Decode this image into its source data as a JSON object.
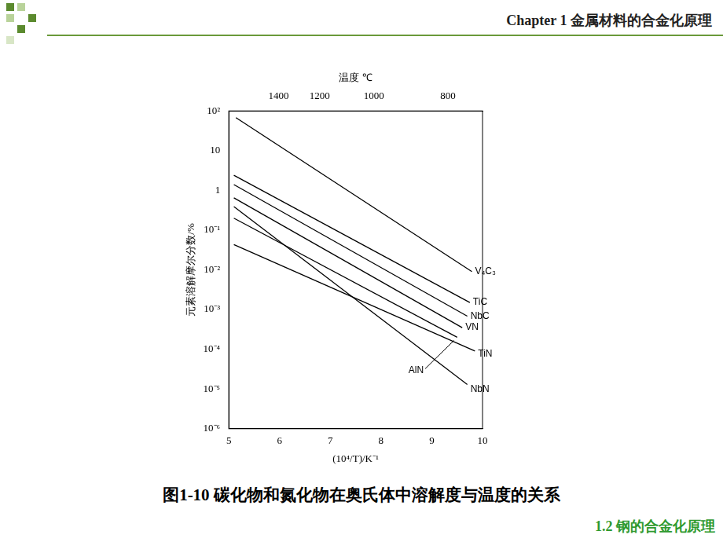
{
  "header": "Chapter 1 金属材料的合金化原理",
  "footer": "1.2 钢的合金化原理",
  "chart_data": {
    "type": "line",
    "title": "图1-10 碳化物和氮化物在奥氏体中溶解度与温度的关系",
    "x_label": "(10⁴/T)/K⁻¹",
    "x2_label": "温度 ℃",
    "y_label": "元素溶解摩尔分数/%",
    "log": "y",
    "grid": false,
    "xlim": [
      5,
      10
    ],
    "xticks": [
      5,
      6,
      7,
      8,
      9,
      10
    ],
    "x2lim": [
      5,
      10
    ],
    "x2ticks": [
      {
        "value": 5.98,
        "label": "1400"
      },
      {
        "value": 6.79,
        "label": "1200"
      },
      {
        "value": 7.86,
        "label": "1000"
      },
      {
        "value": 9.32,
        "label": "800"
      }
    ],
    "ylim": [
      1e-06,
      100
    ],
    "yticks": [
      {
        "value": 1e-06,
        "label": "10⁻⁶"
      },
      {
        "value": 1e-05,
        "label": "10⁻⁵"
      },
      {
        "value": 0.0001,
        "label": "10⁻⁴"
      },
      {
        "value": 0.001,
        "label": "10⁻³"
      },
      {
        "value": 0.01,
        "label": "10⁻²"
      },
      {
        "value": 0.1,
        "label": "10⁻¹"
      },
      1,
      10,
      {
        "value": 100,
        "label": "10²"
      }
    ],
    "series": [
      {
        "name": "V₄C₃",
        "color": "#000000",
        "x": [
          5.14,
          9.79
        ],
        "values": [
          68,
          0.009
        ]
      },
      {
        "name": "TiC",
        "color": "#000000",
        "x": [
          5.1,
          9.75
        ],
        "values": [
          2.4,
          0.0015
        ]
      },
      {
        "name": "NbC",
        "color": "#000000",
        "x": [
          5.1,
          9.7
        ],
        "values": [
          1.4,
          0.00068
        ]
      },
      {
        "name": "VN",
        "color": "#000000",
        "x": [
          5.1,
          9.6
        ],
        "values": [
          0.65,
          0.00035
        ]
      },
      {
        "name": "NbN",
        "color": "#000000",
        "x": [
          5.1,
          9.7
        ],
        "values": [
          0.39,
          1.3e-05
        ]
      },
      {
        "name": "AlN",
        "color": "#000000",
        "x": [
          5.1,
          9.5
        ],
        "values": [
          0.2,
          0.0002
        ]
      },
      {
        "name": "TiN",
        "color": "#000000",
        "x": [
          5.1,
          9.85
        ],
        "values": [
          0.043,
          9e-05
        ]
      }
    ]
  }
}
